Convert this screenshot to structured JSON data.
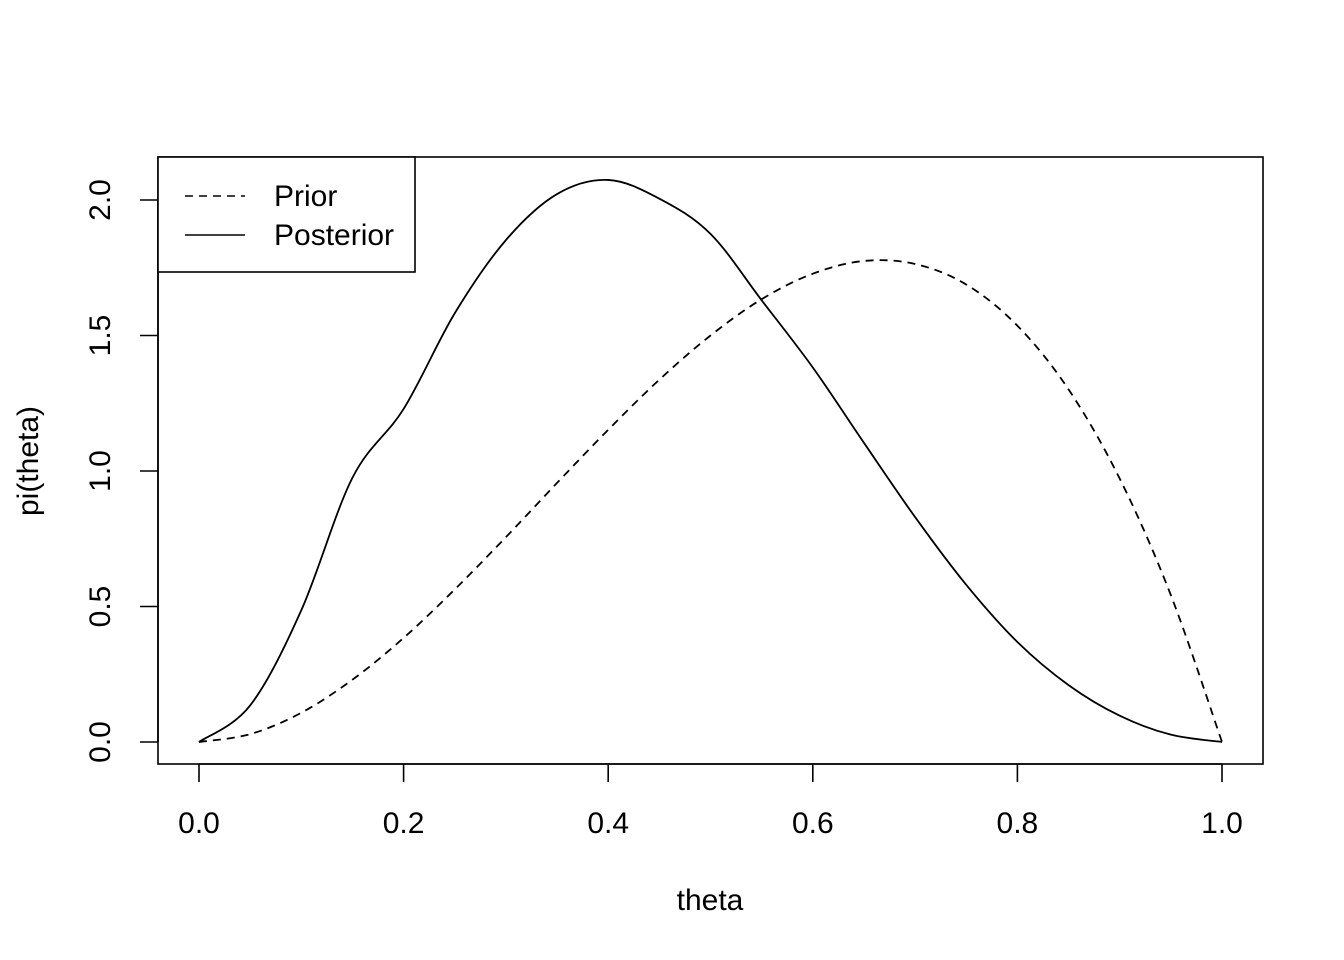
{
  "chart_data": {
    "type": "line",
    "title": "",
    "xlabel": "theta",
    "ylabel": "pi(theta)",
    "xlim": [
      0.0,
      1.0
    ],
    "ylim": [
      0.0,
      2.0
    ],
    "xticks": [
      "0.0",
      "0.2",
      "0.4",
      "0.6",
      "0.8",
      "1.0"
    ],
    "yticks": [
      "0.0",
      "0.5",
      "1.0",
      "1.5",
      "2.0"
    ],
    "grid": false,
    "legend_position": "top-left",
    "series": [
      {
        "name": "Prior",
        "line_style": "dashed",
        "color": "#000000",
        "x": [
          0.0,
          0.05,
          0.1,
          0.15,
          0.2,
          0.25,
          0.3,
          0.35,
          0.4,
          0.45,
          0.5,
          0.55,
          0.6,
          0.65,
          0.7,
          0.75,
          0.8,
          0.85,
          0.9,
          0.95,
          1.0
        ],
        "y": [
          0.0,
          0.029,
          0.108,
          0.23,
          0.384,
          0.563,
          0.756,
          0.956,
          1.152,
          1.337,
          1.5,
          1.634,
          1.728,
          1.775,
          1.764,
          1.688,
          1.536,
          1.301,
          0.972,
          0.542,
          0.0
        ]
      },
      {
        "name": "Posterior",
        "line_style": "solid",
        "color": "#000000",
        "x": [
          0.0,
          0.05,
          0.1,
          0.15,
          0.2,
          0.25,
          0.3,
          0.35,
          0.4,
          0.45,
          0.5,
          0.55,
          0.6,
          0.65,
          0.7,
          0.75,
          0.8,
          0.85,
          0.9,
          0.95,
          1.0
        ],
        "y": [
          0.0,
          0.135,
          0.486,
          0.975,
          1.229,
          1.582,
          1.852,
          2.022,
          2.074,
          2.005,
          1.875,
          1.63,
          1.382,
          1.104,
          0.83,
          0.58,
          0.369,
          0.21,
          0.097,
          0.027,
          0.0
        ]
      }
    ]
  }
}
